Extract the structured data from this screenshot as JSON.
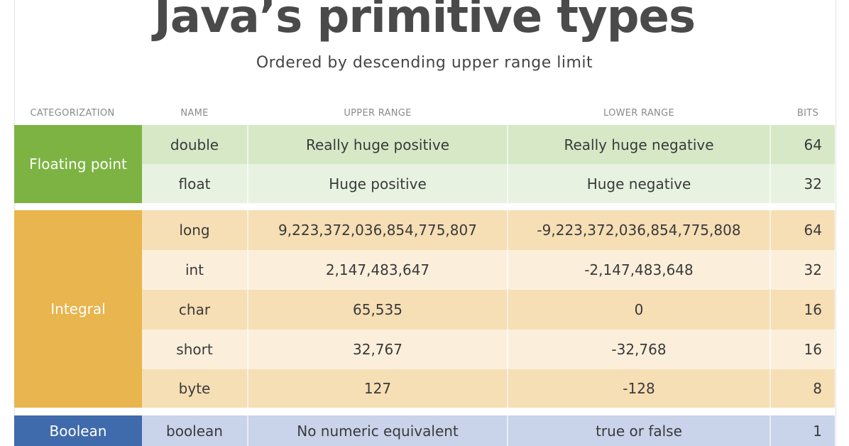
{
  "title": "Java’s primitive types",
  "subtitle": "Ordered by descending upper range limit",
  "headers": {
    "categorization": "CATEGORIZATION",
    "name": "NAME",
    "upper": "UPPER RANGE",
    "lower": "LOWER RANGE",
    "bits": "BITS"
  },
  "categories": {
    "floating": {
      "label": "Floating point",
      "color": "#7cb342"
    },
    "integral": {
      "label": "Integral",
      "color": "#e8b54e"
    },
    "boolean": {
      "label": "Boolean",
      "color": "#3f6aab"
    }
  },
  "rows": [
    {
      "name": "double",
      "upper": "Really huge positive",
      "lower": "Really huge negative",
      "bits": "64",
      "color": "#d6e8c6"
    },
    {
      "name": "float",
      "upper": "Huge positive",
      "lower": "Huge negative",
      "bits": "32",
      "color": "#e8f2e0"
    },
    {
      "name": "long",
      "upper": "9,223,372,036,854,775,807",
      "lower": "-9,223,372,036,854,775,808",
      "bits": "64",
      "color": "#f6deb5"
    },
    {
      "name": "int",
      "upper": "2,147,483,647",
      "lower": "-2,147,483,648",
      "bits": "32",
      "color": "#fbefdc"
    },
    {
      "name": "char",
      "upper": "65,535",
      "lower": "0",
      "bits": "16",
      "color": "#f6deb5"
    },
    {
      "name": "short",
      "upper": "32,767",
      "lower": "-32,768",
      "bits": "16",
      "color": "#fbefdc"
    },
    {
      "name": "byte",
      "upper": "127",
      "lower": "-128",
      "bits": "8",
      "color": "#f6deb5"
    },
    {
      "name": "boolean",
      "upper": "No numeric equivalent",
      "lower": "true or false",
      "bits": "1",
      "color": "#c9d3ea"
    }
  ]
}
